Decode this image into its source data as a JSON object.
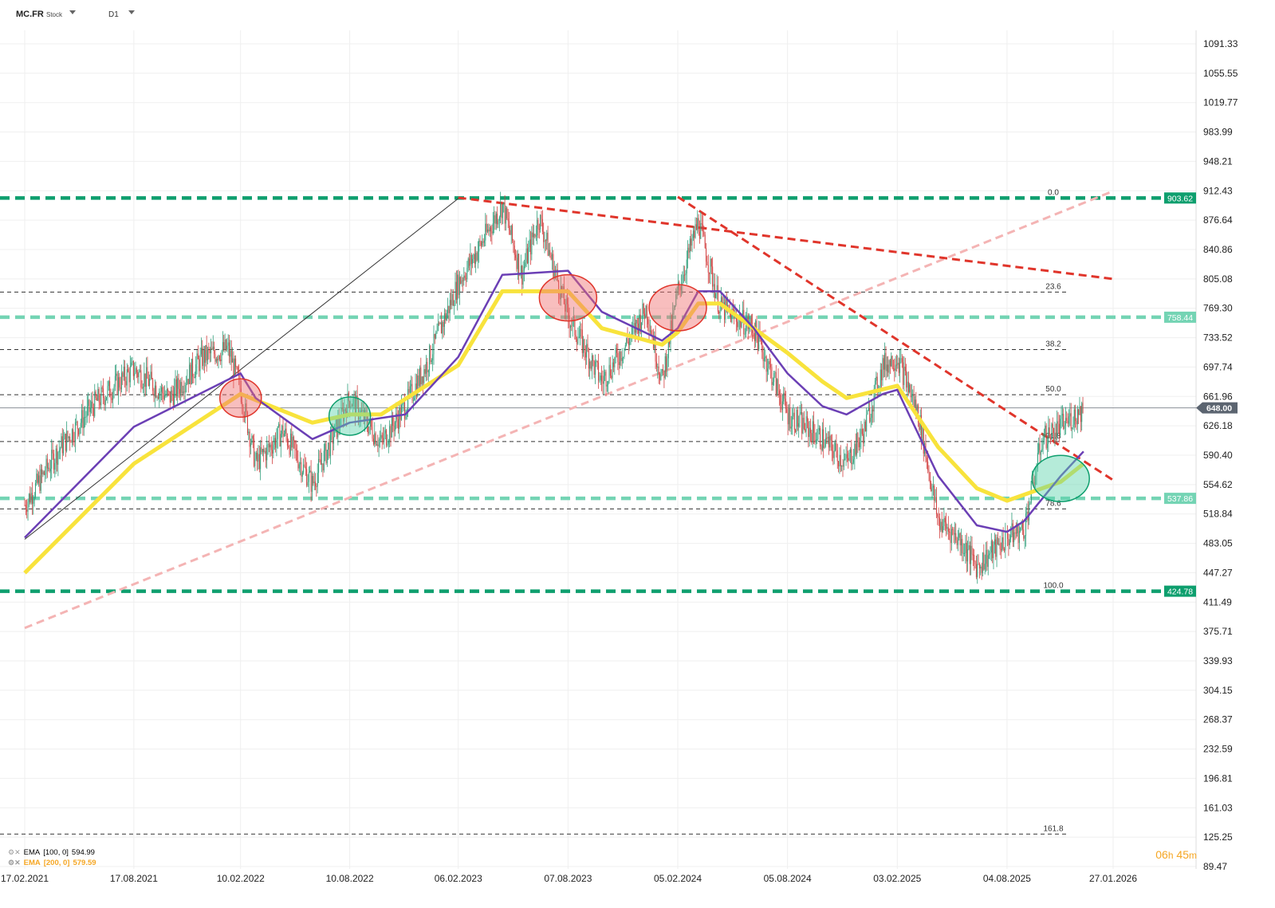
{
  "toolbar": {
    "symbol": "MC.FR",
    "symbol_type": "Stock",
    "interval": "D1"
  },
  "legend": [
    {
      "name": "EMA",
      "params": "[100,  0]",
      "value": "594.99",
      "color": "#333333"
    },
    {
      "name": "EMA",
      "params": "[200,  0]",
      "value": "579.59",
      "color": "#f5a623"
    }
  ],
  "timer": {
    "hours": "06",
    "h": "h",
    "minutes": "45",
    "m": "m"
  },
  "chart_data": {
    "type": "candlestick",
    "y_ticks": [
      "1091.33",
      "1055.55",
      "1019.77",
      "983.99",
      "948.21",
      "912.43",
      "876.64",
      "840.86",
      "805.08",
      "769.30",
      "733.52",
      "697.74",
      "661.96",
      "626.18",
      "590.40",
      "554.62",
      "518.84",
      "483.05",
      "447.27",
      "411.49",
      "375.71",
      "339.93",
      "304.15",
      "268.37",
      "232.59",
      "196.81",
      "161.03",
      "125.25",
      "89.47"
    ],
    "x_ticks": [
      "17.02.2021",
      "17.08.2021",
      "10.02.2022",
      "10.08.2022",
      "06.02.2023",
      "07.08.2023",
      "05.02.2024",
      "05.08.2024",
      "03.02.2025",
      "04.08.2025",
      "27.01.2026"
    ],
    "ylim": [
      89.47,
      1091.33
    ],
    "current_price": {
      "value": 648.0,
      "label": "648.00",
      "color": "#5b6470"
    },
    "horizontal_levels": [
      {
        "value": 903.62,
        "label": "903.62",
        "color": "#0e9f6e",
        "style": "thick-dashed"
      },
      {
        "value": 758.44,
        "label": "758.44",
        "color": "#74d4b4",
        "style": "thick-dashed"
      },
      {
        "value": 537.86,
        "label": "537.86",
        "color": "#74d4b4",
        "style": "thick-dashed"
      },
      {
        "value": 424.78,
        "label": "424.78",
        "color": "#0e9f6e",
        "style": "thick-dashed"
      }
    ],
    "fibonacci_levels": [
      {
        "ratio": "0.0",
        "value": 903.62
      },
      {
        "ratio": "23.6",
        "value": 789.0
      },
      {
        "ratio": "38.2",
        "value": 719.0
      },
      {
        "ratio": "50.0",
        "value": 664.0
      },
      {
        "ratio": "61.8",
        "value": 607.0
      },
      {
        "ratio": "78.6",
        "value": 525.0
      },
      {
        "ratio": "100.0",
        "value": 424.78
      },
      {
        "ratio": "161.8",
        "value": 129.0
      }
    ],
    "price_series": [
      [
        "17.02.2021",
        530
      ],
      [
        "17.04.2021",
        600
      ],
      [
        "15.06.2021",
        655
      ],
      [
        "17.08.2021",
        695
      ],
      [
        "15.10.2021",
        660
      ],
      [
        "10.12.2021",
        710
      ],
      [
        "20.01.2022",
        720
      ],
      [
        "10.02.2022",
        670
      ],
      [
        "07.03.2022",
        580
      ],
      [
        "21.04.2022",
        620
      ],
      [
        "09.06.2022",
        555
      ],
      [
        "10.08.2022",
        660
      ],
      [
        "01.10.2022",
        605
      ],
      [
        "10.11.2022",
        650
      ],
      [
        "15.12.2022",
        700
      ],
      [
        "06.02.2023",
        800
      ],
      [
        "10.03.2023",
        840
      ],
      [
        "20.04.2023",
        895
      ],
      [
        "22.05.2023",
        810
      ],
      [
        "20.06.2023",
        880
      ],
      [
        "07.08.2023",
        760
      ],
      [
        "02.10.2023",
        680
      ],
      [
        "15.11.2023",
        730
      ],
      [
        "15.12.2023",
        770
      ],
      [
        "10.01.2024",
        680
      ],
      [
        "05.02.2024",
        790
      ],
      [
        "10.03.2024",
        875
      ],
      [
        "15.04.2024",
        770
      ],
      [
        "10.06.2024",
        745
      ],
      [
        "05.08.2024",
        640
      ],
      [
        "02.10.2024",
        610
      ],
      [
        "11.11.2024",
        580
      ],
      [
        "10.12.2024",
        620
      ],
      [
        "10.01.2025",
        700
      ],
      [
        "03.02.2025",
        710
      ],
      [
        "10.03.2025",
        640
      ],
      [
        "12.04.2025",
        510
      ],
      [
        "15.05.2025",
        490
      ],
      [
        "15.06.2025",
        455
      ],
      [
        "04.08.2025",
        490
      ],
      [
        "01.09.2025",
        500
      ],
      [
        "01.10.2025",
        610
      ],
      [
        "01.11.2025",
        625
      ],
      [
        "09.12.2025",
        648
      ]
    ],
    "ema_100": [
      [
        "17.02.2021",
        490
      ],
      [
        "17.08.2021",
        625
      ],
      [
        "10.02.2022",
        690
      ],
      [
        "07.03.2022",
        660
      ],
      [
        "09.06.2022",
        610
      ],
      [
        "10.08.2022",
        630
      ],
      [
        "10.11.2022",
        640
      ],
      [
        "06.02.2023",
        710
      ],
      [
        "20.04.2023",
        810
      ],
      [
        "07.08.2023",
        815
      ],
      [
        "02.10.2023",
        765
      ],
      [
        "10.01.2024",
        730
      ],
      [
        "05.02.2024",
        745
      ],
      [
        "10.03.2024",
        790
      ],
      [
        "15.04.2024",
        790
      ],
      [
        "10.06.2024",
        745
      ],
      [
        "05.08.2024",
        690
      ],
      [
        "02.10.2024",
        650
      ],
      [
        "11.11.2024",
        640
      ],
      [
        "10.01.2025",
        665
      ],
      [
        "03.02.2025",
        670
      ],
      [
        "12.04.2025",
        565
      ],
      [
        "15.06.2025",
        505
      ],
      [
        "04.08.2025",
        497
      ],
      [
        "01.09.2025",
        510
      ],
      [
        "01.11.2025",
        565
      ],
      [
        "09.12.2025",
        595
      ]
    ],
    "ema_200": [
      [
        "17.02.2021",
        447
      ],
      [
        "17.08.2021",
        580
      ],
      [
        "10.02.2022",
        665
      ],
      [
        "09.06.2022",
        630
      ],
      [
        "10.08.2022",
        640
      ],
      [
        "01.10.2022",
        640
      ],
      [
        "06.02.2023",
        700
      ],
      [
        "20.04.2023",
        790
      ],
      [
        "07.08.2023",
        790
      ],
      [
        "02.10.2023",
        745
      ],
      [
        "10.01.2024",
        725
      ],
      [
        "05.02.2024",
        740
      ],
      [
        "10.03.2024",
        775
      ],
      [
        "15.04.2024",
        775
      ],
      [
        "05.08.2024",
        715
      ],
      [
        "02.10.2024",
        680
      ],
      [
        "11.11.2024",
        660
      ],
      [
        "03.02.2025",
        675
      ],
      [
        "12.04.2025",
        600
      ],
      [
        "15.06.2025",
        550
      ],
      [
        "04.08.2025",
        535
      ],
      [
        "01.11.2025",
        558
      ],
      [
        "09.12.2025",
        580
      ]
    ],
    "trend_lines": [
      {
        "from": [
          "17.02.2021",
          488
        ],
        "to": [
          "06.02.2023",
          903
        ],
        "color": "#333333",
        "style": "thin"
      },
      {
        "from": [
          "17.02.2021",
          380
        ],
        "to": [
          "27.01.2026",
          912
        ],
        "color": "#f4b4b4",
        "style": "dashed"
      },
      {
        "from": [
          "06.02.2023",
          904
        ],
        "to": [
          "27.01.2026",
          805
        ],
        "color": "#e0352b",
        "style": "dashed"
      },
      {
        "from": [
          "05.02.2024",
          905
        ],
        "to": [
          "27.01.2026",
          560
        ],
        "color": "#e0352b",
        "style": "dashed"
      }
    ],
    "highlights": [
      {
        "at": [
          "10.02.2022",
          660
        ],
        "color": "red"
      },
      {
        "at": [
          "10.08.2022",
          638
        ],
        "color": "green"
      },
      {
        "at": [
          "07.08.2023",
          782
        ],
        "color": "red"
      },
      {
        "at": [
          "05.02.2024",
          770
        ],
        "color": "red"
      },
      {
        "at": [
          "01.11.2025",
          562
        ],
        "color": "green"
      }
    ],
    "colors": {
      "up": "#2e9e7a",
      "down": "#d23f3f",
      "ema_100": "#6b3fb5",
      "ema_200": "#f8e33c",
      "grid": "#eeeeee",
      "fib": "#333333"
    }
  }
}
